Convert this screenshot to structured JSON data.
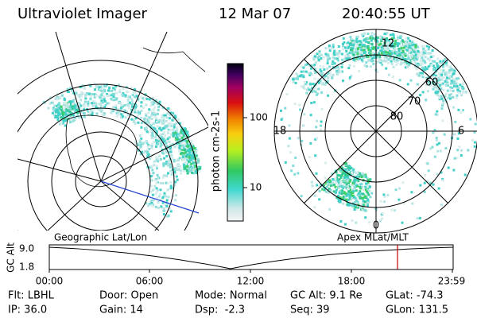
{
  "header": {
    "title": "Ultraviolet Imager",
    "date": "12 Mar 07",
    "time": "20:40:55 UT"
  },
  "colorbar": {
    "label": "photon cm-2s-1",
    "ticks": [
      "100",
      "10"
    ]
  },
  "polar": {
    "labels": {
      "noon": "12",
      "dusk": "18",
      "dawn": "6",
      "midnight": "0"
    },
    "lat_labels": [
      "60",
      "70",
      "80"
    ]
  },
  "altitude_plot": {
    "left_title": "Geographic Lat/Lon",
    "right_title": "Apex MLat/MLT",
    "axis_label": "GC Alt",
    "y_labels": [
      "9.0",
      "1.8"
    ],
    "time_labels": [
      "00:00",
      "06:00",
      "12:00",
      "18:00",
      "23:59"
    ]
  },
  "info": [
    [
      "Flt: LBHL",
      "Door: Open",
      "Mode: Normal",
      "GC Alt: 9.1 Re",
      "GLat: -74.3"
    ],
    [
      "IP: 36.0",
      "Gain: 14",
      "Dsp:  -2.3",
      "Seq: 39",
      "GLon: 131.5"
    ]
  ]
}
